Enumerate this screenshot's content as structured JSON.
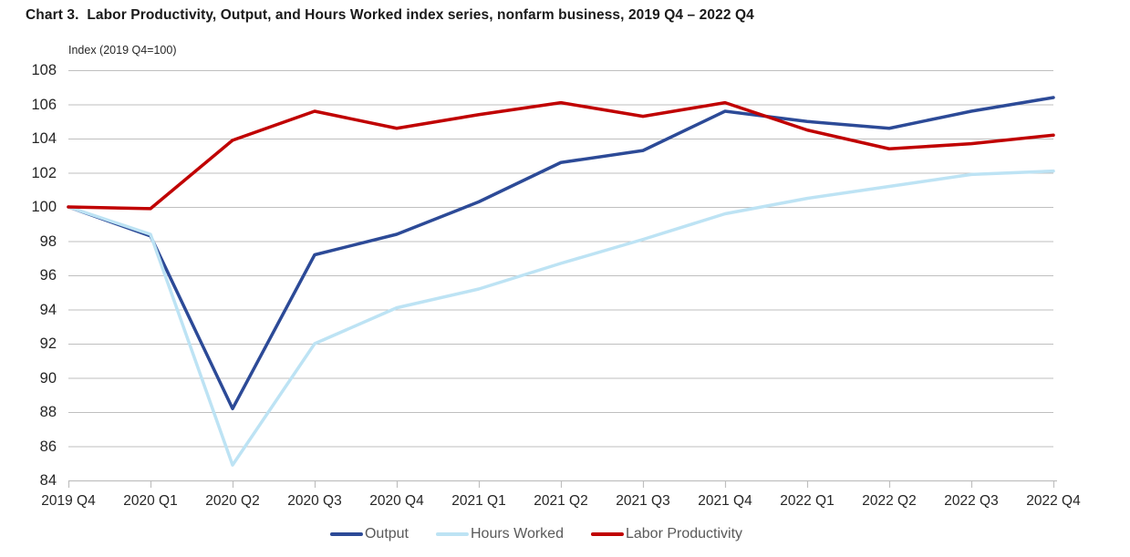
{
  "title": "Chart 3.  Labor Productivity, Output, and Hours Worked index series, nonfarm business, 2019 Q4 – 2022 Q4",
  "axis_note": "Index (2019 Q4=100)",
  "chart_data": {
    "type": "line",
    "title": "Chart 3.  Labor Productivity, Output, and Hours Worked index series, nonfarm business, 2019 Q4 – 2022 Q4",
    "ylabel": "Index (2019 Q4=100)",
    "xlabel": "",
    "ylim": [
      84,
      108
    ],
    "ytick_step": 2,
    "grid": true,
    "legend_position": "bottom",
    "categories": [
      "2019 Q4",
      "2020 Q1",
      "2020 Q2",
      "2020 Q3",
      "2020 Q4",
      "2021 Q1",
      "2021 Q2",
      "2021 Q3",
      "2021 Q4",
      "2022 Q1",
      "2022 Q2",
      "2022 Q3",
      "2022 Q4"
    ],
    "series": [
      {
        "name": "Output",
        "color": "#2C4A97",
        "values": [
          100.0,
          98.3,
          88.2,
          97.2,
          98.4,
          100.3,
          102.6,
          103.3,
          105.6,
          105.0,
          104.6,
          105.6,
          106.4
        ]
      },
      {
        "name": "Hours Worked",
        "color": "#BDE3F4",
        "values": [
          100.0,
          98.4,
          84.9,
          92.0,
          94.1,
          95.2,
          96.7,
          98.1,
          99.6,
          100.5,
          101.2,
          101.9,
          102.1
        ]
      },
      {
        "name": "Labor Productivity",
        "color": "#C00000",
        "values": [
          100.0,
          99.9,
          103.9,
          105.6,
          104.6,
          105.4,
          106.1,
          105.3,
          106.1,
          104.5,
          103.4,
          103.7,
          104.2
        ]
      }
    ]
  },
  "colors": {
    "gridline": "#BFBFBF",
    "axis_line": "#BFBFBF",
    "tick": "#BFBFBF",
    "title_text": "#1a1a1a",
    "axis_text": "#262626",
    "legend_text": "#595959",
    "background": "#FFFFFF"
  }
}
